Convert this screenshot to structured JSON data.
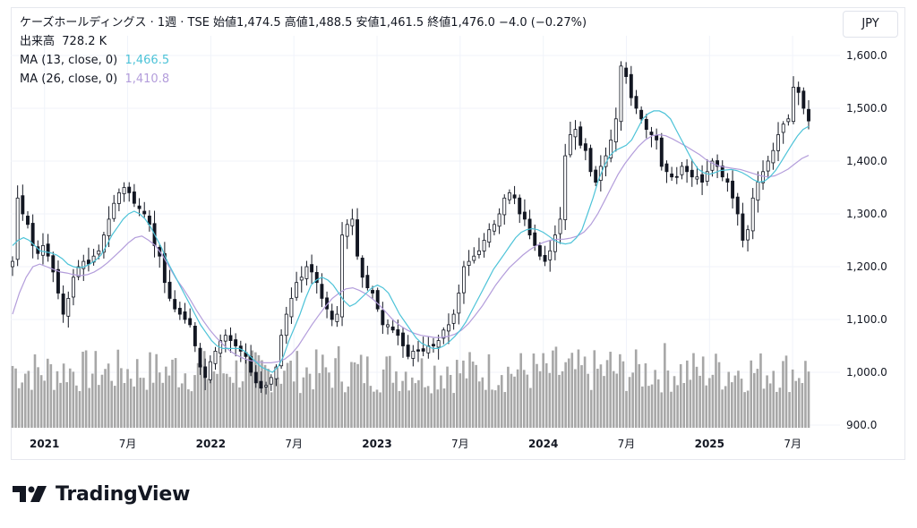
{
  "legend": {
    "main_line": "ケーズホールディングス · 1週 · TSE  始値1,474.5  高値1,488.5  安値1,461.5  終値1,476.0  −4.0 (−0.27%)",
    "volume_label": "出来高",
    "volume_value": "728.2 K",
    "ma13_label": "MA (13, close, 0)",
    "ma13_value": "1,466.5",
    "ma26_label": "MA (26, close, 0)",
    "ma26_value": "1,410.8"
  },
  "currency_button": "JPY",
  "brand": {
    "name": "TradingView"
  },
  "colors": {
    "up": "#ffffff",
    "down": "#131722",
    "ma13": "#4dc3d8",
    "ma26": "#b39ddb",
    "volume": "#a7a7a7",
    "grid": "#f0f3fa"
  },
  "chart_data": {
    "type": "candlestick",
    "price_unit": "JPY",
    "interval": "1週",
    "ylim": [
      900,
      1630
    ],
    "y_ticks": [
      "1,600.0",
      "1,500.0",
      "1,400.0",
      "1,300.0",
      "1,200.0",
      "1,100.0",
      "1,000.0",
      "900.0"
    ],
    "y_tick_values": [
      1600,
      1500,
      1400,
      1300,
      1200,
      1100,
      1000,
      900
    ],
    "x_labels": [
      {
        "text": "2021",
        "year": true,
        "week": 10
      },
      {
        "text": "7月",
        "year": false,
        "week": 36
      },
      {
        "text": "2022",
        "year": true,
        "week": 62
      },
      {
        "text": "7月",
        "year": false,
        "week": 88
      },
      {
        "text": "2023",
        "year": true,
        "week": 114
      },
      {
        "text": "7月",
        "year": false,
        "week": 140
      },
      {
        "text": "2024",
        "year": true,
        "week": 166
      },
      {
        "text": "7月",
        "year": false,
        "week": 192
      },
      {
        "text": "2025",
        "year": true,
        "week": 218
      },
      {
        "text": "7月",
        "year": false,
        "week": 244
      }
    ],
    "close_series_weekly": [
      1210,
      1330,
      1300,
      1280,
      1240,
      1225,
      1240,
      1220,
      1190,
      1150,
      1110,
      1140,
      1180,
      1200,
      1210,
      1205,
      1220,
      1230,
      1260,
      1290,
      1320,
      1340,
      1350,
      1340,
      1320,
      1310,
      1300,
      1280,
      1240,
      1220,
      1170,
      1140,
      1120,
      1110,
      1100,
      1090,
      1050,
      1010,
      990,
      1020,
      1040,
      1060,
      1070,
      1060,
      1050,
      1040,
      1030,
      1000,
      980,
      970,
      975,
      990,
      1010,
      1070,
      1110,
      1140,
      1170,
      1180,
      1200,
      1190,
      1170,
      1140,
      1120,
      1100,
      1110,
      1260,
      1280,
      1290,
      1220,
      1180,
      1160,
      1150,
      1120,
      1090,
      1090,
      1080,
      1070,
      1050,
      1030,
      1040,
      1040,
      1040,
      1050,
      1050,
      1060,
      1080,
      1090,
      1110,
      1150,
      1200,
      1210,
      1220,
      1230,
      1250,
      1270,
      1280,
      1300,
      1330,
      1340,
      1330,
      1300,
      1290,
      1260,
      1240,
      1220,
      1210,
      1230,
      1260,
      1290,
      1410,
      1450,
      1460,
      1430,
      1420,
      1380,
      1360,
      1390,
      1410,
      1440,
      1480,
      1580,
      1560,
      1520,
      1500,
      1480,
      1460,
      1450,
      1440,
      1390,
      1380,
      1370,
      1370,
      1390,
      1380,
      1370,
      1370,
      1360,
      1380,
      1400,
      1390,
      1370,
      1360,
      1330,
      1300,
      1250,
      1270,
      1330,
      1360,
      1380,
      1400,
      1420,
      1450,
      1470,
      1480,
      1540,
      1530,
      1500,
      1476
    ],
    "ma13_series_weekly": [
      1240,
      1250,
      1255,
      1250,
      1240,
      1230,
      1228,
      1226,
      1222,
      1215,
      1205,
      1200,
      1198,
      1200,
      1205,
      1212,
      1222,
      1240,
      1260,
      1275,
      1290,
      1300,
      1305,
      1300,
      1290,
      1275,
      1255,
      1235,
      1210,
      1190,
      1170,
      1150,
      1130,
      1110,
      1090,
      1075,
      1060,
      1050,
      1045,
      1045,
      1045,
      1045,
      1040,
      1030,
      1020,
      1010,
      1005,
      1000,
      1010,
      1030,
      1060,
      1085,
      1110,
      1140,
      1165,
      1175,
      1180,
      1175,
      1165,
      1150,
      1135,
      1125,
      1130,
      1140,
      1150,
      1160,
      1165,
      1160,
      1150,
      1130,
      1110,
      1095,
      1080,
      1065,
      1055,
      1050,
      1045,
      1045,
      1050,
      1058,
      1068,
      1080,
      1095,
      1115,
      1135,
      1155,
      1175,
      1195,
      1210,
      1225,
      1240,
      1255,
      1265,
      1270,
      1272,
      1270,
      1265,
      1258,
      1250,
      1245,
      1243,
      1245,
      1255,
      1270,
      1300,
      1330,
      1365,
      1390,
      1410,
      1420,
      1425,
      1430,
      1440,
      1460,
      1480,
      1490,
      1495,
      1495,
      1490,
      1480,
      1460,
      1440,
      1420,
      1400,
      1385,
      1378,
      1375,
      1378,
      1382,
      1383,
      1384,
      1382,
      1378,
      1372,
      1365,
      1360,
      1362,
      1370,
      1382,
      1398,
      1415,
      1432,
      1448,
      1460,
      1466
    ],
    "ma26_series_weekly": [
      1110,
      1150,
      1180,
      1200,
      1205,
      1200,
      1195,
      1190,
      1188,
      1185,
      1183,
      1185,
      1190,
      1198,
      1208,
      1220,
      1232,
      1245,
      1255,
      1258,
      1250,
      1240,
      1222,
      1200,
      1178,
      1160,
      1140,
      1118,
      1098,
      1080,
      1065,
      1052,
      1040,
      1032,
      1026,
      1022,
      1020,
      1018,
      1018,
      1020,
      1025,
      1035,
      1050,
      1070,
      1090,
      1108,
      1125,
      1140,
      1150,
      1158,
      1160,
      1155,
      1148,
      1138,
      1126,
      1112,
      1098,
      1088,
      1080,
      1074,
      1070,
      1068,
      1066,
      1066,
      1068,
      1072,
      1080,
      1092,
      1108,
      1125,
      1145,
      1165,
      1182,
      1198,
      1210,
      1222,
      1232,
      1240,
      1246,
      1250,
      1252,
      1252,
      1254,
      1258,
      1266,
      1280,
      1300,
      1325,
      1350,
      1375,
      1395,
      1412,
      1428,
      1440,
      1448,
      1450,
      1448,
      1442,
      1435,
      1428,
      1420,
      1412,
      1402,
      1395,
      1390,
      1388,
      1386,
      1384,
      1380,
      1376,
      1372,
      1370,
      1372,
      1378,
      1385,
      1395,
      1405,
      1410.8
    ]
  }
}
